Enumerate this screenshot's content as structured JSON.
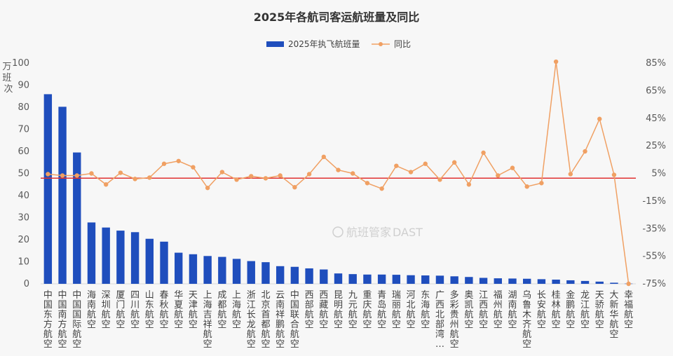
{
  "chart_data": {
    "type": "bar",
    "title": "2025年各航司客运航班量及同比",
    "ylabel": "万班次",
    "ylim": [
      0,
      100
    ],
    "y2lim": [
      -75,
      85
    ],
    "yticks": [
      "0",
      "10",
      "20",
      "30",
      "40",
      "50",
      "60",
      "70",
      "80",
      "90",
      "100"
    ],
    "y2ticks": [
      "85%",
      "65%",
      "45%",
      "25%",
      "5%",
      "-15%",
      "-35%",
      "-55%",
      "-75%"
    ],
    "categories": [
      "中国东方航空",
      "中国南方航空",
      "中国国际航空",
      "海南航空",
      "深圳航空",
      "厦门航空",
      "四川航空",
      "山东航空",
      "春秋航空",
      "华夏航空",
      "天津航空",
      "上海吉祥航空",
      "成都航空",
      "上海航空",
      "浙江长龙航空",
      "北京首都航空",
      "云南祥鹏航空",
      "中国联合航空",
      "西部航空",
      "西藏航空",
      "昆明航空",
      "九元航空",
      "重庆航空",
      "青岛航空",
      "瑞丽航空",
      "河北航空",
      "东海航空",
      "广西北部湾…",
      "多彩贵州航空",
      "奥凯航空",
      "江西航空",
      "福州航空",
      "湖南航空",
      "乌鲁木齐航空",
      "长安航空",
      "桂林航空",
      "金鹏航空",
      "龙江航空",
      "天骄航空",
      "大新华航空",
      "幸福航空"
    ],
    "series": [
      {
        "name": "2025年执飞航班量",
        "type": "bar",
        "color": "#1f4ebd",
        "values": [
          85.9,
          80.2,
          59.5,
          27.8,
          25.5,
          24.1,
          23.4,
          20.4,
          19.1,
          14.1,
          13.4,
          12.6,
          12.2,
          11.3,
          10.3,
          9.8,
          8.0,
          7.7,
          7.0,
          6.5,
          4.7,
          4.4,
          4.2,
          4.2,
          4.1,
          3.9,
          3.8,
          3.7,
          3.4,
          3.1,
          2.7,
          2.5,
          2.4,
          2.3,
          2.1,
          1.9,
          1.6,
          1.3,
          1.0,
          0.5,
          0.1
        ]
      },
      {
        "name": "同比",
        "type": "line",
        "axis": "right",
        "unit": "%",
        "color": "#f0a063",
        "values": [
          4.5,
          3.5,
          3.5,
          5.0,
          -3.0,
          5.5,
          1.0,
          2.0,
          12.0,
          14.0,
          9.5,
          -5.5,
          6.0,
          0.5,
          3.0,
          1.5,
          3.5,
          -5.0,
          4.5,
          17.0,
          7.5,
          5.0,
          -2.0,
          -6.0,
          10.5,
          6.0,
          12.0,
          0.5,
          13.0,
          -3.0,
          20.0,
          3.5,
          9.0,
          -4.5,
          -2.0,
          86.0,
          4.5,
          21.0,
          44.5,
          4.0,
          -75.0
        ]
      }
    ],
    "reference_line": {
      "axis": "right",
      "value": 1.6,
      "color": "#e03030"
    },
    "legend": {
      "position": "top-center"
    }
  },
  "watermark": {
    "brand": "航班管家",
    "sub": "DAST"
  }
}
